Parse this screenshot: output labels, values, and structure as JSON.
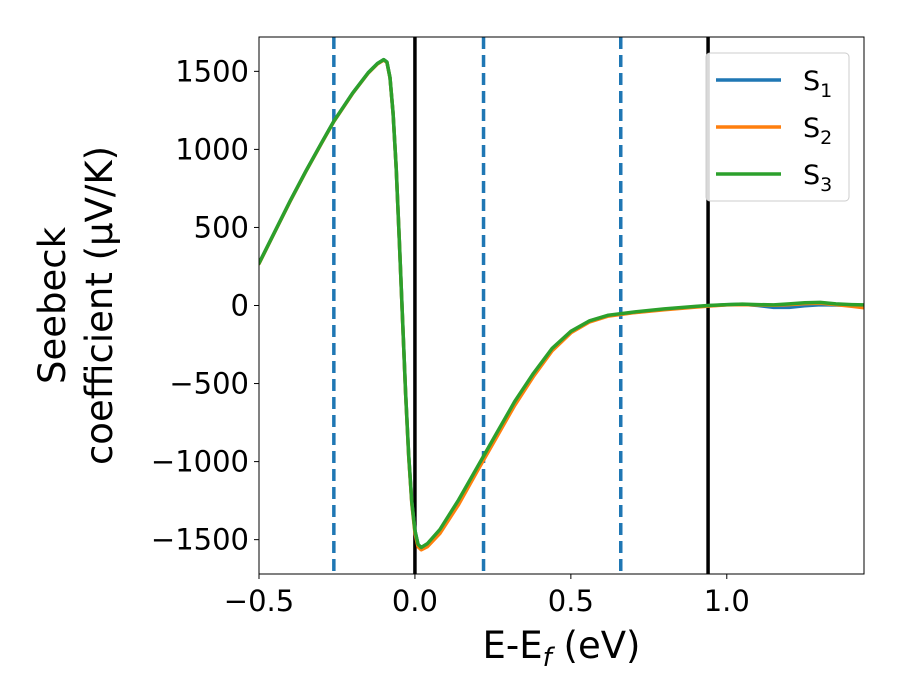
{
  "chart_data": {
    "type": "line",
    "title": "",
    "xlabel": {
      "base": "E-E",
      "sub": "f",
      "tail": " (eV)"
    },
    "ylabel": {
      "line1": "Seebeck",
      "line2": "coefficient  (μV/K)"
    },
    "xlim": [
      -0.5,
      1.44
    ],
    "ylim": [
      -1720,
      1720
    ],
    "x_ticks": [
      -0.5,
      0.0,
      0.5,
      1.0
    ],
    "x_tick_labels": [
      "−0.5",
      "0.0",
      "0.5",
      "1.0"
    ],
    "y_ticks": [
      -1500,
      -1000,
      -500,
      0,
      500,
      1000,
      1500
    ],
    "y_tick_labels": [
      "−1500",
      "−1000",
      "−500",
      "0",
      "500",
      "1000",
      "1500"
    ],
    "grid": false,
    "legend_position": "top-right",
    "vlines": [
      {
        "x": -0.26,
        "style": "dashed",
        "color": "#1f77b4"
      },
      {
        "x": 0.0,
        "style": "solid",
        "color": "#000000"
      },
      {
        "x": 0.22,
        "style": "dashed",
        "color": "#1f77b4"
      },
      {
        "x": 0.66,
        "style": "dashed",
        "color": "#1f77b4"
      },
      {
        "x": 0.94,
        "style": "solid",
        "color": "#000000"
      }
    ],
    "series": [
      {
        "name": "S",
        "sub": "1",
        "color": "#1f77b4",
        "points": [
          [
            -0.5,
            270
          ],
          [
            -0.45,
            470
          ],
          [
            -0.4,
            670
          ],
          [
            -0.35,
            860
          ],
          [
            -0.3,
            1040
          ],
          [
            -0.26,
            1180
          ],
          [
            -0.2,
            1360
          ],
          [
            -0.15,
            1490
          ],
          [
            -0.12,
            1550
          ],
          [
            -0.1,
            1575
          ],
          [
            -0.09,
            1560
          ],
          [
            -0.08,
            1460
          ],
          [
            -0.07,
            1230
          ],
          [
            -0.06,
            880
          ],
          [
            -0.05,
            420
          ],
          [
            -0.04,
            -80
          ],
          [
            -0.03,
            -560
          ],
          [
            -0.02,
            -960
          ],
          [
            -0.01,
            -1260
          ],
          [
            0.0,
            -1440
          ],
          [
            0.01,
            -1530
          ],
          [
            0.02,
            -1555
          ],
          [
            0.04,
            -1530
          ],
          [
            0.08,
            -1440
          ],
          [
            0.14,
            -1250
          ],
          [
            0.2,
            -1040
          ],
          [
            0.26,
            -830
          ],
          [
            0.32,
            -620
          ],
          [
            0.38,
            -440
          ],
          [
            0.44,
            -280
          ],
          [
            0.5,
            -170
          ],
          [
            0.56,
            -100
          ],
          [
            0.62,
            -65
          ],
          [
            0.7,
            -45
          ],
          [
            0.8,
            -25
          ],
          [
            0.9,
            -8
          ],
          [
            0.94,
            -2
          ],
          [
            1.0,
            5
          ],
          [
            1.05,
            8
          ],
          [
            1.1,
            0
          ],
          [
            1.15,
            -12
          ],
          [
            1.2,
            -12
          ],
          [
            1.25,
            -2
          ],
          [
            1.3,
            5
          ],
          [
            1.35,
            3
          ],
          [
            1.4,
            2
          ],
          [
            1.44,
            -2
          ]
        ]
      },
      {
        "name": "S",
        "sub": "2",
        "color": "#ff7f0e",
        "points": [
          [
            -0.5,
            268
          ],
          [
            -0.45,
            468
          ],
          [
            -0.4,
            668
          ],
          [
            -0.35,
            858
          ],
          [
            -0.3,
            1038
          ],
          [
            -0.26,
            1178
          ],
          [
            -0.2,
            1358
          ],
          [
            -0.15,
            1488
          ],
          [
            -0.12,
            1548
          ],
          [
            -0.1,
            1572
          ],
          [
            -0.09,
            1558
          ],
          [
            -0.08,
            1458
          ],
          [
            -0.07,
            1228
          ],
          [
            -0.06,
            878
          ],
          [
            -0.05,
            418
          ],
          [
            -0.04,
            -85
          ],
          [
            -0.03,
            -565
          ],
          [
            -0.02,
            -970
          ],
          [
            -0.01,
            -1270
          ],
          [
            0.0,
            -1455
          ],
          [
            0.01,
            -1545
          ],
          [
            0.02,
            -1565
          ],
          [
            0.04,
            -1545
          ],
          [
            0.08,
            -1460
          ],
          [
            0.14,
            -1275
          ],
          [
            0.2,
            -1060
          ],
          [
            0.26,
            -850
          ],
          [
            0.32,
            -640
          ],
          [
            0.38,
            -455
          ],
          [
            0.44,
            -290
          ],
          [
            0.5,
            -175
          ],
          [
            0.56,
            -105
          ],
          [
            0.62,
            -68
          ],
          [
            0.7,
            -47
          ],
          [
            0.8,
            -27
          ],
          [
            0.9,
            -10
          ],
          [
            0.94,
            -4
          ],
          [
            1.0,
            4
          ],
          [
            1.05,
            6
          ],
          [
            1.1,
            3
          ],
          [
            1.15,
            2
          ],
          [
            1.2,
            6
          ],
          [
            1.25,
            12
          ],
          [
            1.3,
            14
          ],
          [
            1.35,
            6
          ],
          [
            1.4,
            -5
          ],
          [
            1.44,
            -15
          ]
        ]
      },
      {
        "name": "S",
        "sub": "3",
        "color": "#2ca02c",
        "points": [
          [
            -0.5,
            270
          ],
          [
            -0.45,
            470
          ],
          [
            -0.4,
            670
          ],
          [
            -0.35,
            860
          ],
          [
            -0.3,
            1040
          ],
          [
            -0.26,
            1180
          ],
          [
            -0.2,
            1360
          ],
          [
            -0.15,
            1490
          ],
          [
            -0.12,
            1550
          ],
          [
            -0.1,
            1575
          ],
          [
            -0.09,
            1560
          ],
          [
            -0.08,
            1460
          ],
          [
            -0.07,
            1230
          ],
          [
            -0.06,
            880
          ],
          [
            -0.05,
            420
          ],
          [
            -0.04,
            -80
          ],
          [
            -0.03,
            -560
          ],
          [
            -0.02,
            -960
          ],
          [
            -0.01,
            -1260
          ],
          [
            0.0,
            -1440
          ],
          [
            0.01,
            -1530
          ],
          [
            0.02,
            -1550
          ],
          [
            0.04,
            -1525
          ],
          [
            0.08,
            -1435
          ],
          [
            0.14,
            -1245
          ],
          [
            0.2,
            -1035
          ],
          [
            0.26,
            -825
          ],
          [
            0.32,
            -615
          ],
          [
            0.38,
            -435
          ],
          [
            0.44,
            -275
          ],
          [
            0.5,
            -165
          ],
          [
            0.56,
            -98
          ],
          [
            0.62,
            -62
          ],
          [
            0.7,
            -42
          ],
          [
            0.8,
            -22
          ],
          [
            0.9,
            -6
          ],
          [
            0.94,
            0
          ],
          [
            1.0,
            6
          ],
          [
            1.05,
            9
          ],
          [
            1.1,
            6
          ],
          [
            1.15,
            4
          ],
          [
            1.2,
            10
          ],
          [
            1.25,
            18
          ],
          [
            1.3,
            20
          ],
          [
            1.35,
            10
          ],
          [
            1.4,
            6
          ],
          [
            1.44,
            4
          ]
        ]
      }
    ]
  }
}
